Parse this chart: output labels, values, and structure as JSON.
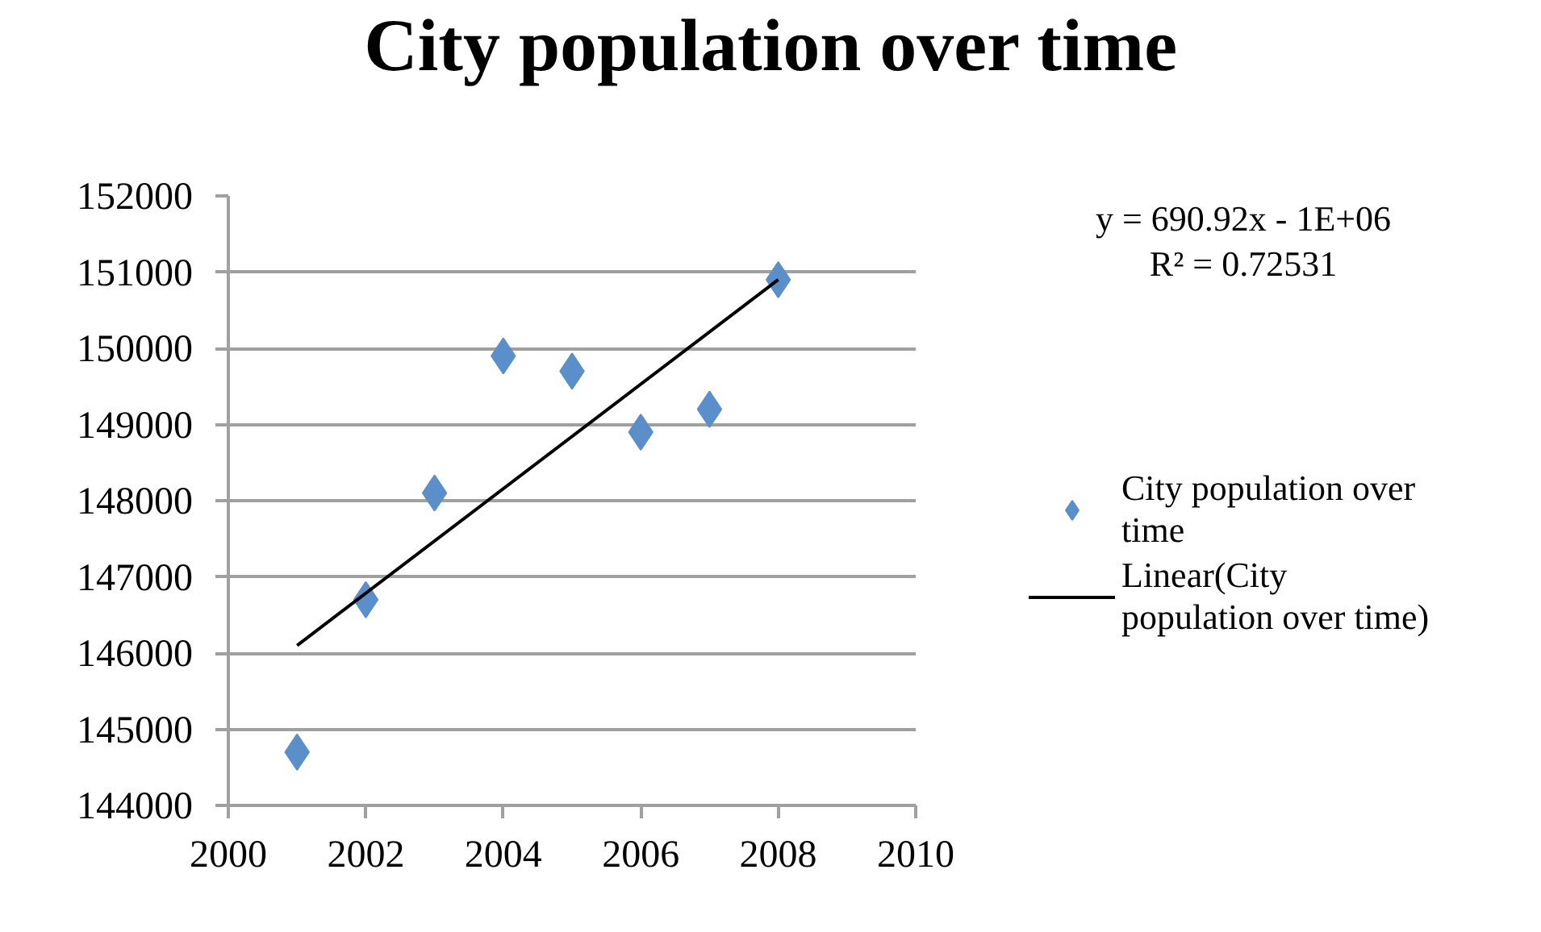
{
  "chart_data": {
    "type": "scatter",
    "title": "City population over time",
    "x": [
      2001,
      2002,
      2003,
      2004,
      2005,
      2006,
      2007,
      2008
    ],
    "series": [
      {
        "name": "City population over time",
        "color": "#5b8fc9",
        "marker": "diamond",
        "values": [
          144700,
          146700,
          148100,
          149900,
          149700,
          148900,
          149200,
          150900
        ]
      },
      {
        "name": "Linear(City population over time)",
        "type": "line",
        "color": "#000000",
        "x": [
          2001,
          2008
        ],
        "values": [
          146100,
          150900
        ]
      }
    ],
    "xlim": [
      2000,
      2010
    ],
    "ylim": [
      144000,
      152000
    ],
    "xticks": [
      2000,
      2002,
      2004,
      2006,
      2008,
      2010
    ],
    "yticks": [
      144000,
      145000,
      146000,
      147000,
      148000,
      149000,
      150000,
      151000,
      152000
    ],
    "grid": "y",
    "legend": "right",
    "annotations": [
      "y = 690.92x - 1E+06",
      "R² = 0.72531"
    ]
  }
}
